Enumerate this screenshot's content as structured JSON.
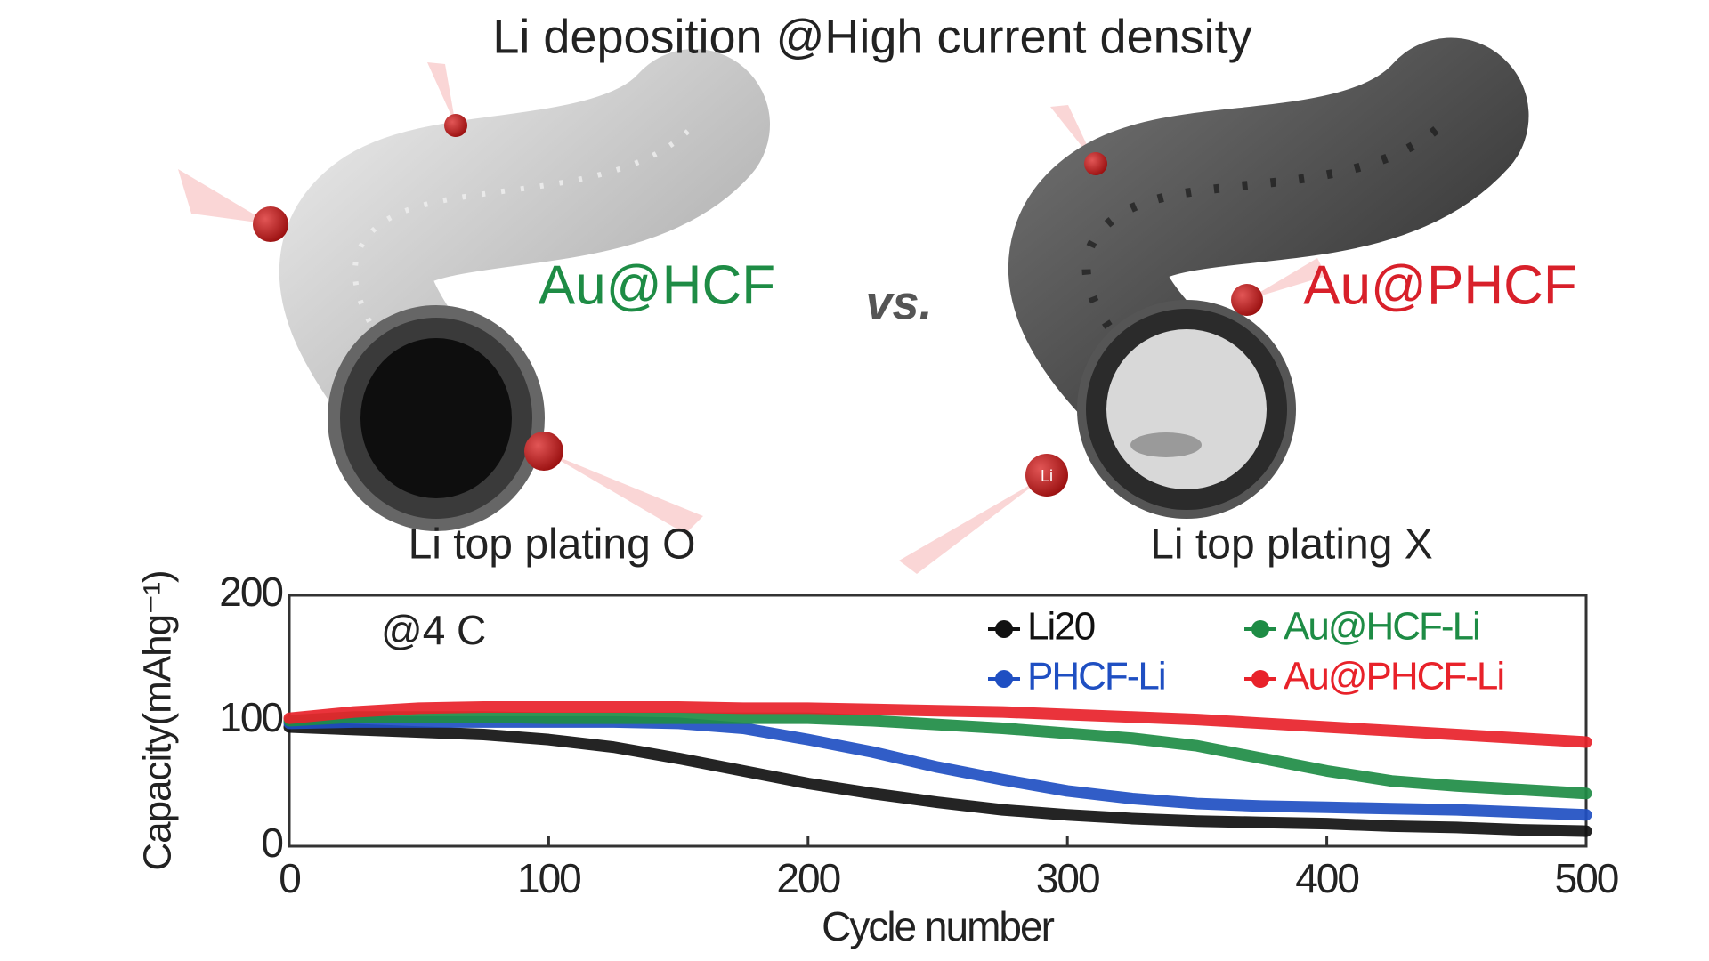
{
  "title": "Li deposition @High current density",
  "illustrations": [
    {
      "label": "Au@HCF",
      "caption": "Li top plating O"
    },
    {
      "label": "Au@PHCF",
      "caption": "Li top plating X"
    }
  ],
  "comparison": "vs.",
  "ion_label": "Li",
  "chart_data": {
    "type": "line",
    "annotation": "@4 C",
    "x_label": "Cycle number",
    "y_label": "Capacity(mAhg⁻¹)",
    "x": [
      0,
      25,
      50,
      75,
      100,
      125,
      150,
      175,
      200,
      225,
      250,
      275,
      300,
      325,
      350,
      375,
      400,
      425,
      450,
      475,
      500
    ],
    "series": [
      {
        "name": "Li20",
        "color": "#111111",
        "values": [
          95,
          93,
          91,
          89,
          85,
          79,
          70,
          60,
          50,
          42,
          35,
          29,
          25,
          22,
          20,
          19,
          18,
          16,
          15,
          13,
          12
        ]
      },
      {
        "name": "PHCF-Li",
        "color": "#1f4fc2",
        "values": [
          98,
          99,
          99,
          99,
          99,
          99,
          98,
          94,
          85,
          75,
          63,
          53,
          44,
          38,
          34,
          32,
          31,
          30,
          29,
          27,
          25
        ]
      },
      {
        "name": "Au@HCF-Li",
        "color": "#1e8c45",
        "values": [
          100,
          103,
          103,
          103,
          102,
          102,
          102,
          102,
          102,
          100,
          97,
          94,
          90,
          86,
          80,
          70,
          60,
          52,
          48,
          45,
          42
        ]
      },
      {
        "name": "Au@PHCF-Li",
        "color": "#e8222a",
        "values": [
          102,
          107,
          110,
          111,
          111,
          111,
          111,
          110,
          110,
          109,
          108,
          107,
          105,
          103,
          101,
          98,
          95,
          92,
          89,
          86,
          83
        ]
      }
    ],
    "xlim": [
      0,
      500
    ],
    "ylim": [
      0,
      200
    ],
    "xticks": [
      0,
      100,
      200,
      300,
      400,
      500
    ],
    "yticks": [
      0,
      100,
      200
    ]
  }
}
